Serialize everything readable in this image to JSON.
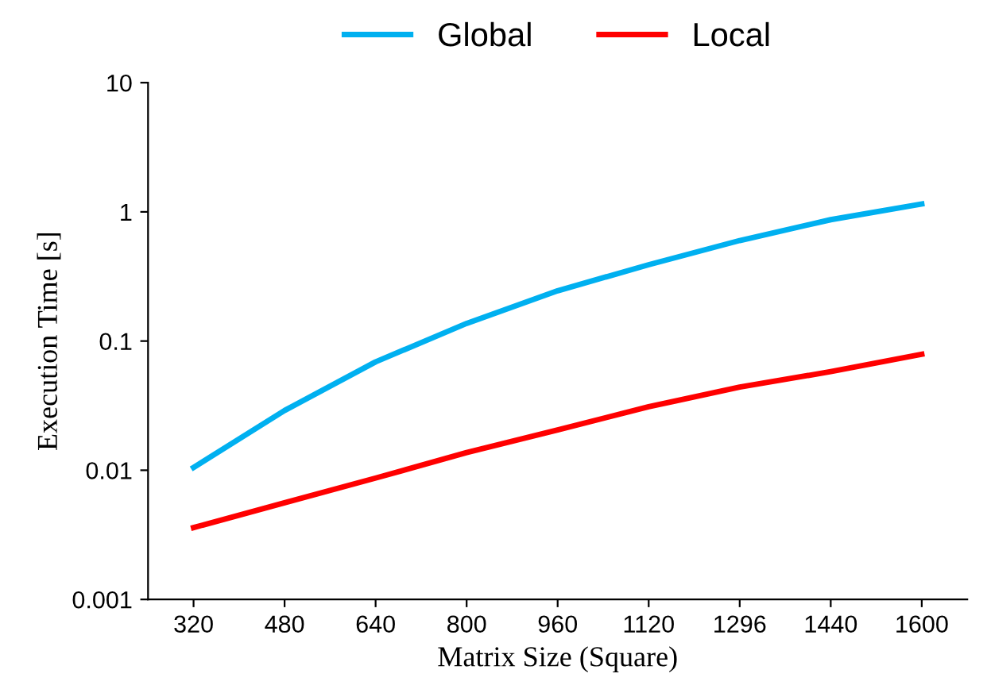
{
  "chart_data": {
    "type": "line",
    "xlabel": "Matrix Size (Square)",
    "ylabel": "Execution Time [s]",
    "categories": [
      "320",
      "480",
      "640",
      "800",
      "960",
      "1120",
      "1296",
      "1440",
      "1600"
    ],
    "series": [
      {
        "name": "Global",
        "color": "#00b0f0",
        "values": [
          0.0105,
          0.029,
          0.069,
          0.137,
          0.245,
          0.39,
          0.6,
          0.87,
          1.15
        ]
      },
      {
        "name": "Local",
        "color": "#ff0000",
        "values": [
          0.0036,
          0.0056,
          0.0087,
          0.0137,
          0.0205,
          0.031,
          0.044,
          0.058,
          0.079
        ]
      }
    ],
    "log": "y",
    "ylim": [
      0.001,
      10
    ],
    "yticks": [
      {
        "value": 0.001,
        "label": "0.001"
      },
      {
        "value": 0.01,
        "label": "0.01"
      },
      {
        "value": 0.1,
        "label": "0.1"
      },
      {
        "value": 1,
        "label": "1"
      },
      {
        "value": 10,
        "label": "10"
      }
    ],
    "grid": false,
    "legend": "top",
    "marker": "none",
    "line_style": "solid"
  }
}
